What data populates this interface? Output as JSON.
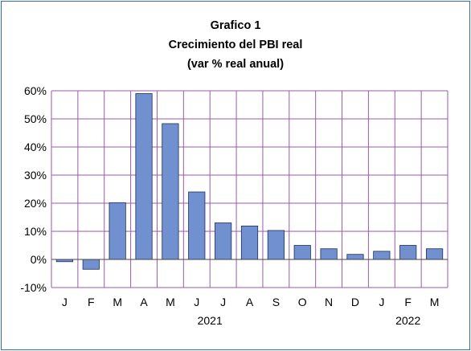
{
  "chart_data": {
    "type": "bar",
    "title": "Grafico 1",
    "subtitle": "Crecimiento del PBI real",
    "subtitle2": "(var % real anual)",
    "categories": [
      "J",
      "F",
      "M",
      "A",
      "M",
      "J",
      "J",
      "A",
      "S",
      "O",
      "N",
      "D",
      "J",
      "F",
      "M"
    ],
    "year_labels": [
      {
        "label": "2021",
        "center_index": 5.5
      },
      {
        "label": "2022",
        "center_index": 13
      }
    ],
    "values": [
      -0.8,
      -3.5,
      20.2,
      59.0,
      48.3,
      24.0,
      13.0,
      11.9,
      10.3,
      5.0,
      3.8,
      1.8,
      2.9,
      5.0,
      3.8
    ],
    "ylim": [
      -10,
      60
    ],
    "yticks": [
      "-10%",
      "0%",
      "10%",
      "20%",
      "30%",
      "40%",
      "50%",
      "60%"
    ],
    "grid": true,
    "colors": {
      "bar": "#7090cf",
      "bar_border": "#1f2f5a",
      "grid": "#9b5aa8",
      "frame": "#2e6db4"
    }
  }
}
